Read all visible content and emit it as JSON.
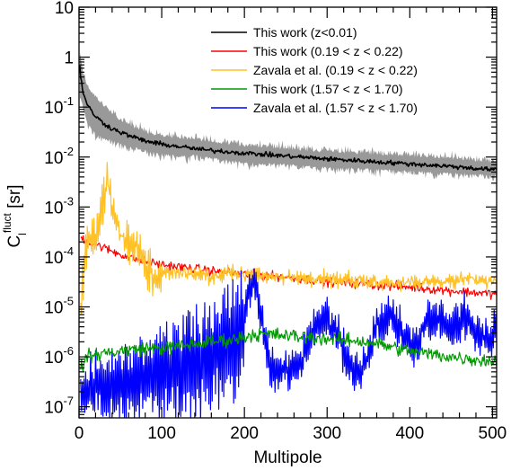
{
  "chart_data": {
    "type": "line",
    "title": "",
    "xlabel": "Multipole",
    "ylabel": {
      "base": "C",
      "sub": "l",
      "sup": "fluct",
      "unit": " [sr]"
    },
    "xlim": [
      0,
      505
    ],
    "ylim": [
      6e-08,
      10
    ],
    "yscale": "log",
    "grid": false,
    "legend_position": "top-right",
    "x_ticks": [
      0,
      100,
      200,
      300,
      400,
      500
    ],
    "x_tick_labels": [
      "0",
      "100",
      "200",
      "300",
      "400",
      "500"
    ],
    "y_ticks": [
      1e-07,
      1e-06,
      1e-05,
      0.0001,
      0.001,
      0.01,
      0.1,
      1,
      10
    ],
    "y_tick_labels": [
      {
        "base": "10",
        "exp": "-7"
      },
      {
        "base": "10",
        "exp": "-6"
      },
      {
        "base": "10",
        "exp": "-5"
      },
      {
        "base": "10",
        "exp": "-4"
      },
      {
        "base": "10",
        "exp": "-3"
      },
      {
        "base": "10",
        "exp": "-2"
      },
      {
        "base": "10",
        "exp": "-1"
      },
      {
        "base": "1",
        "exp": ""
      },
      {
        "base": "10",
        "exp": ""
      }
    ],
    "band": {
      "color": "#999999",
      "x": [
        1,
        5,
        10,
        20,
        30,
        50,
        80,
        100,
        150,
        200,
        250,
        300,
        350,
        400,
        450,
        505
      ],
      "lower": [
        0.2,
        0.1,
        0.05,
        0.03,
        0.025,
        0.02,
        0.014,
        0.012,
        0.011,
        0.008,
        0.0075,
        0.0065,
        0.006,
        0.0055,
        0.005,
        0.0045
      ],
      "upper": [
        1.2,
        0.45,
        0.25,
        0.15,
        0.1,
        0.05,
        0.03,
        0.025,
        0.02,
        0.016,
        0.014,
        0.012,
        0.011,
        0.01,
        0.009,
        0.0075
      ]
    },
    "series": [
      {
        "name": "This work (z<0.01)",
        "color": "#000000",
        "noise": 0.04,
        "x": [
          1,
          2,
          5,
          10,
          20,
          30,
          40,
          60,
          80,
          100,
          150,
          200,
          250,
          300,
          350,
          400,
          450,
          505
        ],
        "y": [
          0.7,
          0.4,
          0.2,
          0.11,
          0.065,
          0.047,
          0.037,
          0.027,
          0.021,
          0.018,
          0.014,
          0.012,
          0.0105,
          0.0092,
          0.0082,
          0.0073,
          0.0065,
          0.0055
        ]
      },
      {
        "name": "This work (0.19 < z < 0.22)",
        "color": "#ff0000",
        "noise": 0.08,
        "x": [
          2,
          10,
          20,
          40,
          60,
          80,
          100,
          150,
          200,
          250,
          300,
          350,
          400,
          450,
          505
        ],
        "y": [
          0.00025,
          0.0002,
          0.00018,
          0.00013,
          0.0001,
          8e-05,
          7e-05,
          5.5e-05,
          4.5e-05,
          4e-05,
          3.2e-05,
          2.8e-05,
          2.5e-05,
          2.1e-05,
          1.8e-05
        ]
      },
      {
        "name": "Zavala et al. (0.19 < z < 0.22)",
        "color": "#ffc125",
        "noise": 0.35,
        "x": [
          2,
          6,
          10,
          15,
          20,
          25,
          30,
          35,
          40,
          45,
          50,
          60,
          70,
          80,
          90,
          100,
          120,
          140,
          160,
          180,
          200,
          250,
          300,
          350,
          400,
          450,
          505
        ],
        "y": [
          1e-05,
          6e-05,
          0.00015,
          0.0003,
          0.0002,
          0.0008,
          0.0015,
          0.003,
          0.001,
          0.0005,
          0.0003,
          0.0002,
          0.0002,
          6e-05,
          4e-05,
          5e-05,
          5e-05,
          4.5e-05,
          4e-05,
          5e-05,
          4.5e-05,
          4e-05,
          3.5e-05,
          3.2e-05,
          3e-05,
          3.3e-05,
          3.5e-05
        ]
      },
      {
        "name": "This work (1.57 < z < 1.70)",
        "color": "#009900",
        "noise": 0.12,
        "x": [
          2,
          10,
          30,
          50,
          80,
          100,
          130,
          160,
          190,
          210,
          230,
          260,
          300,
          350,
          400,
          450,
          505
        ],
        "y": [
          6e-07,
          1e-06,
          1.2e-06,
          1.3e-06,
          1.5e-06,
          1.5e-06,
          1.7e-06,
          2e-06,
          2.3e-06,
          2.8e-06,
          2.8e-06,
          2.6e-06,
          2.3e-06,
          2e-06,
          1.3e-06,
          1e-06,
          8e-07
        ]
      },
      {
        "name": "Zavala et al. (1.57 < z < 1.70)",
        "color": "#0000ff",
        "noise": 0.7,
        "x": [
          2,
          10,
          20,
          30,
          40,
          60,
          80,
          100,
          120,
          140,
          160,
          180,
          195,
          205,
          212,
          218,
          225,
          232,
          240,
          255,
          270,
          285,
          300,
          315,
          330,
          345,
          360,
          375,
          390,
          405,
          420,
          435,
          450,
          465,
          480,
          495,
          505
        ],
        "y": [
          2.5e-07,
          2e-07,
          3e-07,
          2.5e-07,
          3e-07,
          3.5e-07,
          4e-07,
          5e-07,
          6e-07,
          8e-07,
          1e-06,
          1.5e-06,
          3e-06,
          2e-05,
          3.5e-05,
          1e-05,
          2e-06,
          6e-07,
          5e-07,
          5e-07,
          8e-07,
          4e-06,
          6e-06,
          2.5e-06,
          5e-07,
          6e-07,
          4e-06,
          7e-06,
          3e-06,
          1.5e-06,
          4e-06,
          7e-06,
          3e-06,
          8e-06,
          3e-06,
          2e-06,
          4e-06
        ]
      }
    ]
  }
}
